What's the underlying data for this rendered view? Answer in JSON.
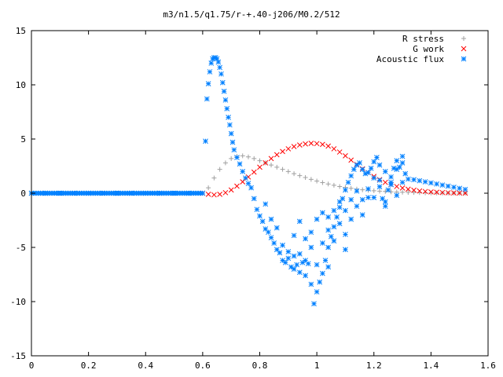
{
  "chart_data": {
    "type": "scatter",
    "title": "m3/n1.5/q1.75/r-+.40-j206/M0.2/512",
    "xlabel": "",
    "ylabel": "",
    "xlim": [
      0,
      1.6
    ],
    "ylim": [
      -15,
      15
    ],
    "xticks": [
      0,
      0.2,
      0.4,
      0.6,
      0.8,
      1,
      1.2,
      1.4,
      1.6
    ],
    "xtick_labels": [
      "0",
      "0.2",
      "0.4",
      "0.6",
      "0.8",
      "1",
      "1.2",
      "1.4",
      "1.6"
    ],
    "yticks": [
      -15,
      -10,
      -5,
      0,
      5,
      10,
      15
    ],
    "ytick_labels": [
      "-15",
      "-10",
      "-5",
      "0",
      "5",
      "10",
      "15"
    ],
    "grid": false,
    "legend_position": "top-right",
    "series": [
      {
        "name": "R stress",
        "marker": "+",
        "color": "#a0a0a0",
        "points": [
          [
            0.6,
            0.0
          ],
          [
            0.62,
            0.5
          ],
          [
            0.64,
            1.4
          ],
          [
            0.66,
            2.2
          ],
          [
            0.68,
            2.8
          ],
          [
            0.7,
            3.2
          ],
          [
            0.72,
            3.4
          ],
          [
            0.74,
            3.45
          ],
          [
            0.76,
            3.35
          ],
          [
            0.78,
            3.2
          ],
          [
            0.8,
            3.0
          ],
          [
            0.82,
            2.8
          ],
          [
            0.84,
            2.6
          ],
          [
            0.86,
            2.4
          ],
          [
            0.88,
            2.2
          ],
          [
            0.9,
            2.0
          ],
          [
            0.92,
            1.8
          ],
          [
            0.94,
            1.62
          ],
          [
            0.96,
            1.45
          ],
          [
            0.98,
            1.28
          ],
          [
            1.0,
            1.12
          ],
          [
            1.02,
            0.98
          ],
          [
            1.04,
            0.85
          ],
          [
            1.06,
            0.73
          ],
          [
            1.08,
            0.62
          ],
          [
            1.1,
            0.53
          ],
          [
            1.12,
            0.45
          ],
          [
            1.14,
            0.38
          ],
          [
            1.16,
            0.32
          ],
          [
            1.18,
            0.27
          ],
          [
            1.2,
            0.23
          ],
          [
            1.22,
            0.19
          ],
          [
            1.24,
            0.16
          ],
          [
            1.26,
            0.13
          ],
          [
            1.28,
            0.11
          ],
          [
            1.3,
            0.09
          ],
          [
            1.32,
            0.07
          ],
          [
            1.34,
            0.06
          ],
          [
            1.36,
            0.05
          ],
          [
            1.38,
            0.04
          ],
          [
            1.4,
            0.03
          ],
          [
            1.42,
            0.02
          ],
          [
            1.44,
            0.02
          ],
          [
            1.46,
            0.01
          ],
          [
            1.48,
            0.01
          ],
          [
            1.5,
            0.0
          ],
          [
            1.52,
            0.0
          ]
        ]
      },
      {
        "name": "G work",
        "marker": "x",
        "color": "#ff0000",
        "points": [
          [
            0.6,
            0.0
          ],
          [
            0.62,
            -0.1
          ],
          [
            0.64,
            -0.15
          ],
          [
            0.66,
            -0.1
          ],
          [
            0.68,
            0.05
          ],
          [
            0.7,
            0.3
          ],
          [
            0.72,
            0.65
          ],
          [
            0.74,
            1.05
          ],
          [
            0.76,
            1.5
          ],
          [
            0.78,
            1.95
          ],
          [
            0.8,
            2.4
          ],
          [
            0.82,
            2.8
          ],
          [
            0.84,
            3.2
          ],
          [
            0.86,
            3.55
          ],
          [
            0.88,
            3.85
          ],
          [
            0.9,
            4.1
          ],
          [
            0.92,
            4.3
          ],
          [
            0.94,
            4.45
          ],
          [
            0.96,
            4.55
          ],
          [
            0.98,
            4.6
          ],
          [
            1.0,
            4.58
          ],
          [
            1.02,
            4.5
          ],
          [
            1.04,
            4.35
          ],
          [
            1.06,
            4.1
          ],
          [
            1.08,
            3.8
          ],
          [
            1.1,
            3.45
          ],
          [
            1.12,
            3.05
          ],
          [
            1.14,
            2.65
          ],
          [
            1.16,
            2.25
          ],
          [
            1.18,
            1.9
          ],
          [
            1.2,
            1.55
          ],
          [
            1.22,
            1.25
          ],
          [
            1.24,
            1.0
          ],
          [
            1.26,
            0.8
          ],
          [
            1.28,
            0.62
          ],
          [
            1.3,
            0.48
          ],
          [
            1.32,
            0.37
          ],
          [
            1.34,
            0.28
          ],
          [
            1.36,
            0.21
          ],
          [
            1.38,
            0.16
          ],
          [
            1.4,
            0.12
          ],
          [
            1.42,
            0.09
          ],
          [
            1.44,
            0.06
          ],
          [
            1.46,
            0.04
          ],
          [
            1.48,
            0.03
          ],
          [
            1.5,
            0.02
          ],
          [
            1.52,
            0.01
          ]
        ]
      },
      {
        "name": "Acoustic flux",
        "marker": "*",
        "color": "#0080ff",
        "points": [
          [
            0.0,
            0.0
          ],
          [
            0.05,
            0.0
          ],
          [
            0.1,
            0.0
          ],
          [
            0.15,
            0.0
          ],
          [
            0.2,
            0.0
          ],
          [
            0.25,
            0.0
          ],
          [
            0.3,
            0.0
          ],
          [
            0.35,
            0.0
          ],
          [
            0.4,
            0.0
          ],
          [
            0.45,
            0.0
          ],
          [
            0.5,
            0.0
          ],
          [
            0.55,
            0.0
          ],
          [
            0.6,
            0.0
          ],
          [
            0.61,
            4.8
          ],
          [
            0.615,
            8.7
          ],
          [
            0.62,
            10.1
          ],
          [
            0.625,
            11.2
          ],
          [
            0.63,
            12.0
          ],
          [
            0.635,
            12.4
          ],
          [
            0.64,
            12.5
          ],
          [
            0.645,
            12.5
          ],
          [
            0.65,
            12.4
          ],
          [
            0.655,
            12.1
          ],
          [
            0.66,
            11.6
          ],
          [
            0.665,
            11.0
          ],
          [
            0.67,
            10.2
          ],
          [
            0.675,
            9.4
          ],
          [
            0.68,
            8.6
          ],
          [
            0.685,
            7.8
          ],
          [
            0.69,
            7.0
          ],
          [
            0.695,
            6.3
          ],
          [
            0.7,
            5.5
          ],
          [
            0.705,
            4.7
          ],
          [
            0.71,
            4.0
          ],
          [
            0.72,
            3.3
          ],
          [
            0.73,
            2.7
          ],
          [
            0.74,
            2.0
          ],
          [
            0.75,
            1.4
          ],
          [
            0.76,
            0.9
          ],
          [
            0.77,
            0.5
          ],
          [
            0.78,
            -0.5
          ],
          [
            0.79,
            -1.5
          ],
          [
            0.8,
            -2.1
          ],
          [
            0.81,
            -2.6
          ],
          [
            0.82,
            -3.3
          ],
          [
            0.83,
            -3.6
          ],
          [
            0.84,
            -4.1
          ],
          [
            0.85,
            -4.6
          ],
          [
            0.86,
            -5.2
          ],
          [
            0.87,
            -5.5
          ],
          [
            0.88,
            -6.2
          ],
          [
            0.89,
            -6.4
          ],
          [
            0.9,
            -6.0
          ],
          [
            0.91,
            -6.8
          ],
          [
            0.92,
            -7.0
          ],
          [
            0.93,
            -6.6
          ],
          [
            0.94,
            -7.3
          ],
          [
            0.95,
            -6.4
          ],
          [
            0.96,
            -7.6
          ],
          [
            0.97,
            -6.5
          ],
          [
            0.98,
            -8.4
          ],
          [
            0.99,
            -10.2
          ],
          [
            1.0,
            -9.1
          ],
          [
            1.01,
            -8.2
          ],
          [
            1.02,
            -7.4
          ],
          [
            1.03,
            -6.2
          ],
          [
            1.04,
            -5.0
          ],
          [
            1.05,
            -4.0
          ],
          [
            1.06,
            -3.1
          ],
          [
            1.07,
            -2.2
          ],
          [
            1.08,
            -1.3
          ],
          [
            1.09,
            -0.5
          ],
          [
            1.1,
            0.3
          ],
          [
            1.11,
            1.0
          ],
          [
            1.12,
            1.6
          ],
          [
            1.13,
            2.2
          ],
          [
            1.14,
            2.6
          ],
          [
            1.15,
            2.8
          ],
          [
            1.16,
            2.2
          ],
          [
            1.17,
            1.8
          ],
          [
            1.18,
            1.9
          ],
          [
            1.19,
            2.3
          ],
          [
            1.2,
            2.9
          ],
          [
            1.21,
            3.3
          ],
          [
            1.22,
            1.2
          ],
          [
            1.23,
            -0.5
          ],
          [
            1.24,
            -1.2
          ],
          [
            1.25,
            0.3
          ],
          [
            1.26,
            1.5
          ],
          [
            1.27,
            2.3
          ],
          [
            1.28,
            3.0
          ],
          [
            1.29,
            2.4
          ],
          [
            1.3,
            3.4
          ],
          [
            1.31,
            1.8
          ],
          [
            1.32,
            1.3
          ],
          [
            1.34,
            1.25
          ],
          [
            1.36,
            1.15
          ],
          [
            1.38,
            1.05
          ],
          [
            1.4,
            0.95
          ],
          [
            1.42,
            0.85
          ],
          [
            1.44,
            0.75
          ],
          [
            1.46,
            0.65
          ],
          [
            1.48,
            0.55
          ],
          [
            1.5,
            0.45
          ],
          [
            1.52,
            0.35
          ],
          [
            0.86,
            -3.2
          ],
          [
            0.88,
            -4.8
          ],
          [
            0.9,
            -5.4
          ],
          [
            0.92,
            -3.9
          ],
          [
            0.94,
            -2.6
          ],
          [
            0.96,
            -4.2
          ],
          [
            0.98,
            -3.6
          ],
          [
            1.0,
            -2.4
          ],
          [
            1.02,
            -1.8
          ],
          [
            1.04,
            -3.4
          ],
          [
            1.06,
            -1.6
          ],
          [
            1.08,
            -0.8
          ],
          [
            1.1,
            -1.6
          ],
          [
            1.12,
            -2.4
          ],
          [
            1.14,
            -1.2
          ],
          [
            1.16,
            -0.6
          ],
          [
            1.18,
            0.4
          ],
          [
            1.2,
            -0.4
          ],
          [
            1.22,
            0.6
          ],
          [
            1.24,
            -0.8
          ],
          [
            1.26,
            0.8
          ],
          [
            1.28,
            -0.2
          ],
          [
            1.3,
            1.0
          ],
          [
            0.94,
            -5.6
          ],
          [
            0.96,
            -6.2
          ],
          [
            0.98,
            -5.0
          ],
          [
            1.0,
            -6.6
          ],
          [
            1.02,
            -4.6
          ],
          [
            1.04,
            -2.2
          ],
          [
            1.06,
            -4.4
          ],
          [
            1.08,
            -2.8
          ],
          [
            1.1,
            -3.8
          ],
          [
            1.12,
            -0.6
          ],
          [
            1.14,
            0.2
          ],
          [
            1.16,
            -2.0
          ],
          [
            1.18,
            -0.4
          ],
          [
            1.2,
            1.4
          ],
          [
            1.22,
            2.6
          ],
          [
            1.24,
            2.0
          ],
          [
            1.26,
            1.0
          ],
          [
            1.28,
            2.2
          ],
          [
            1.3,
            2.8
          ],
          [
            1.1,
            -5.2
          ],
          [
            1.04,
            -6.8
          ],
          [
            0.92,
            -5.8
          ],
          [
            0.84,
            -2.4
          ],
          [
            0.82,
            -1.0
          ]
        ]
      }
    ]
  }
}
